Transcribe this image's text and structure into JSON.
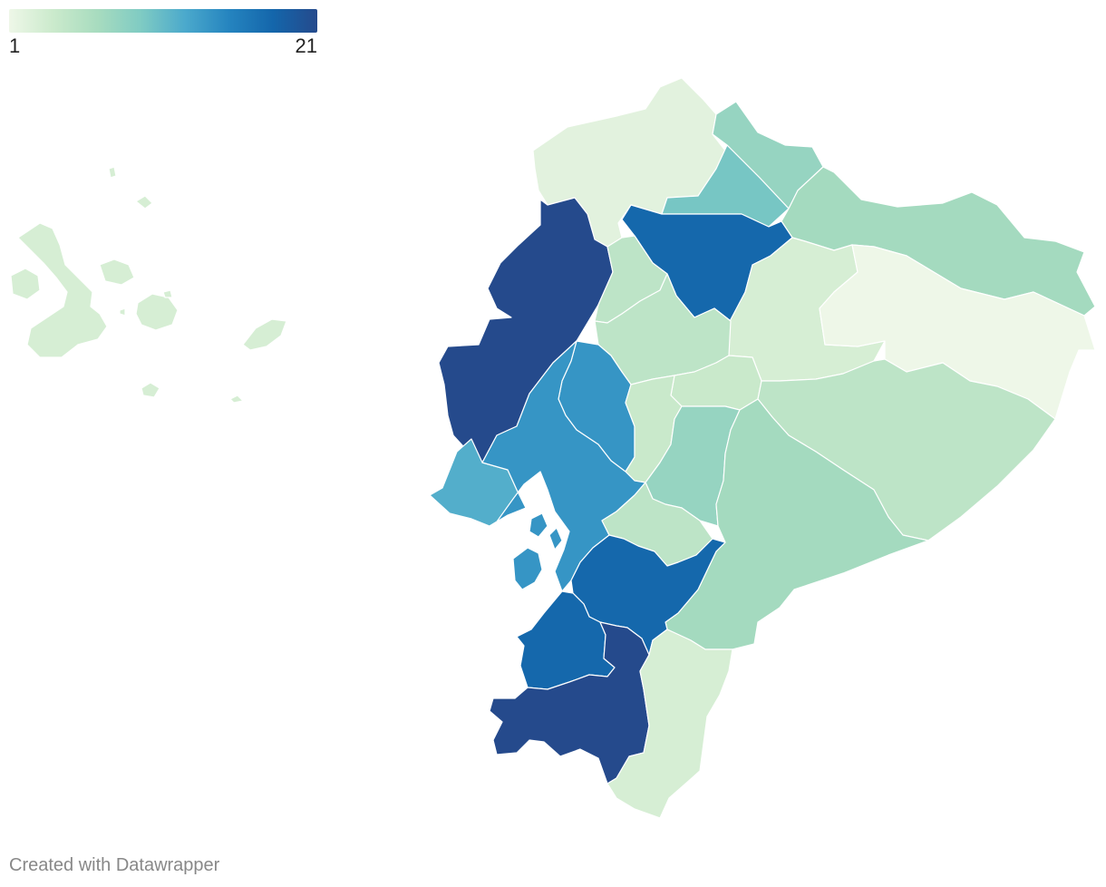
{
  "legend": {
    "min": "1",
    "max": "21",
    "colors": [
      "#eef7e8",
      "#cbeacc",
      "#a8dcbf",
      "#7fcbc3",
      "#4ba9cc",
      "#2584bf",
      "#1466ab",
      "#254a8c"
    ]
  },
  "credit": "Created with Datawrapper",
  "regions": [
    {
      "id": "galapagos",
      "value": 3
    },
    {
      "id": "esmeraldas",
      "value": 2
    },
    {
      "id": "carchi",
      "value": 8
    },
    {
      "id": "imbabura",
      "value": 10
    },
    {
      "id": "sucumbios",
      "value": 7
    },
    {
      "id": "pichincha",
      "value": 18
    },
    {
      "id": "santo-domingo",
      "value": 5
    },
    {
      "id": "manabi",
      "value": 21
    },
    {
      "id": "cotopaxi",
      "value": 5
    },
    {
      "id": "napo",
      "value": 3
    },
    {
      "id": "orellana",
      "value": 1
    },
    {
      "id": "los-rios",
      "value": 14
    },
    {
      "id": "tungurahua",
      "value": 4
    },
    {
      "id": "bolivar",
      "value": 4
    },
    {
      "id": "pastaza",
      "value": 5
    },
    {
      "id": "chimborazo",
      "value": 8
    },
    {
      "id": "santa-elena",
      "value": 12
    },
    {
      "id": "guayas",
      "value": 14
    },
    {
      "id": "canar",
      "value": 5
    },
    {
      "id": "morona-santiago",
      "value": 7
    },
    {
      "id": "azuay",
      "value": 18
    },
    {
      "id": "el-oro",
      "value": 18
    },
    {
      "id": "loja",
      "value": 21
    },
    {
      "id": "zamora-chinchipe",
      "value": 3
    }
  ]
}
